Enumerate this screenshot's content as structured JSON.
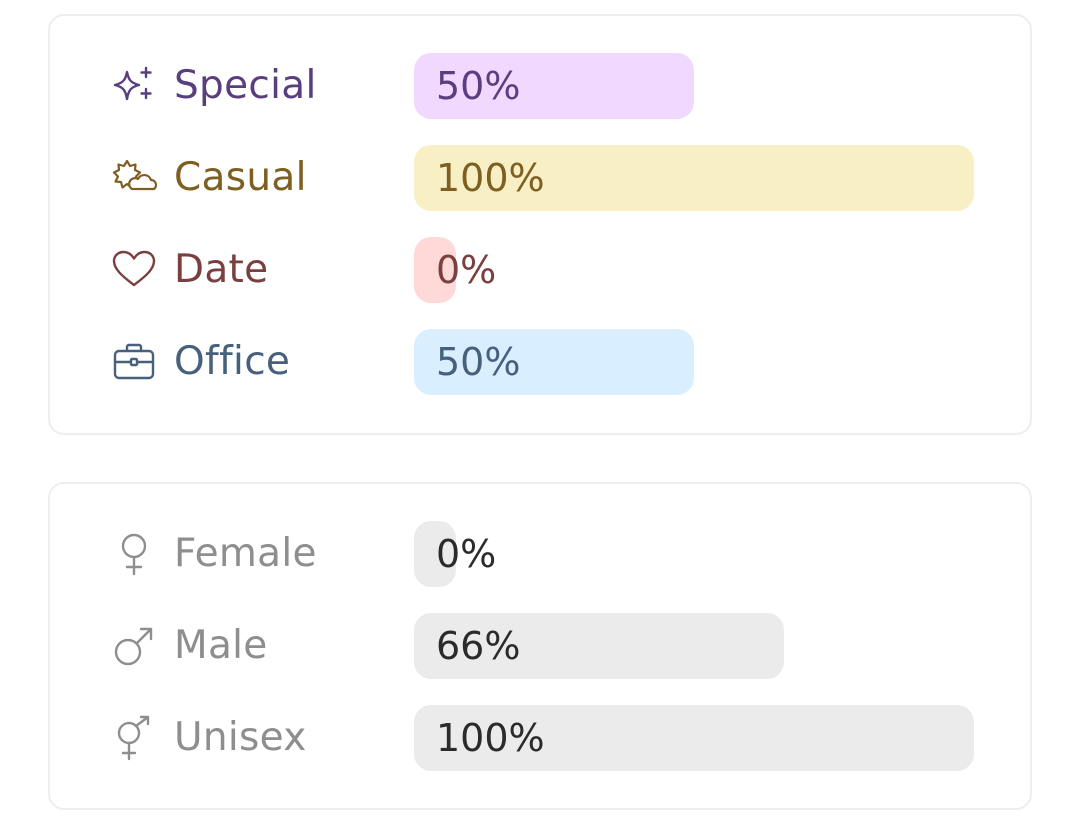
{
  "occasion": {
    "rows": [
      {
        "label": "Special",
        "value_label": "50%",
        "fraction": 0.5,
        "icon": "sparkles-icon",
        "text_color": "#5a3f7e",
        "bar_color": "#f0d8ff"
      },
      {
        "label": "Casual",
        "value_label": "100%",
        "fraction": 1.0,
        "icon": "sun-cloud-icon",
        "text_color": "#7d5f22",
        "bar_color": "#f9efc4"
      },
      {
        "label": "Date",
        "value_label": "0%",
        "fraction": 0.0,
        "icon": "heart-icon",
        "text_color": "#7a4040",
        "bar_color": "#ffd8d8"
      },
      {
        "label": "Office",
        "value_label": "50%",
        "fraction": 0.5,
        "icon": "briefcase-icon",
        "text_color": "#47607c",
        "bar_color": "#d9efff"
      }
    ]
  },
  "gender": {
    "rows": [
      {
        "label": "Female",
        "value_label": "0%",
        "fraction": 0.0,
        "icon": "female-symbol-icon",
        "text_color": "#8e8e8e",
        "bar_color": "#ebebeb"
      },
      {
        "label": "Male",
        "value_label": "66%",
        "fraction": 0.66,
        "icon": "male-symbol-icon",
        "text_color": "#8e8e8e",
        "bar_color": "#ebebeb"
      },
      {
        "label": "Unisex",
        "value_label": "100%",
        "fraction": 1.0,
        "icon": "unisex-symbol-icon",
        "text_color": "#8e8e8e",
        "bar_color": "#ebebeb"
      }
    ]
  },
  "value_text_color": "#2b2b2b"
}
